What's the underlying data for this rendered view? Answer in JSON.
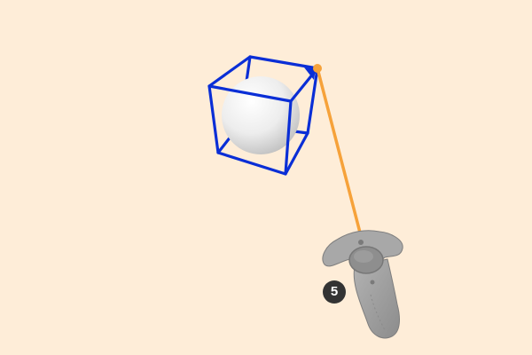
{
  "scene": {
    "background_color": "#FEEDD8",
    "step_badge": {
      "label": "5",
      "color": "#333333",
      "text_color": "#FFFFFF"
    },
    "selection_box": {
      "color": "#0A2ED6",
      "icon": "wireframe-cube-icon"
    },
    "sphere": {
      "icon": "sphere-icon",
      "color": "#EDEDED"
    },
    "laser_pointer": {
      "color": "#F6A23A",
      "icon": "laser-beam-icon"
    },
    "controller": {
      "icon": "vr-controller-icon",
      "color": "#9A9A9A"
    }
  }
}
